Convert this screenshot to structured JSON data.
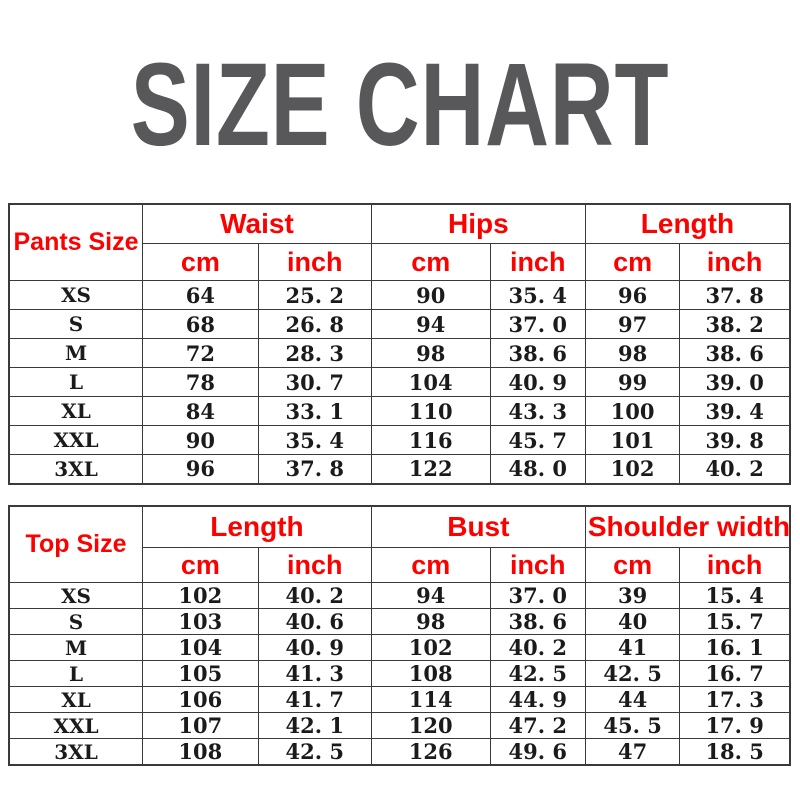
{
  "title": "SIZE CHART",
  "colors": {
    "title_text": "#58585a",
    "header_text": "#fb0100",
    "cell_text": "#1b1b1d",
    "table_border": "#3a3a3c",
    "background": "#ffffff"
  },
  "tables": [
    {
      "row_header_label": "Pants Size",
      "groups": [
        {
          "label": "Waist",
          "units": [
            "cm",
            "inch"
          ]
        },
        {
          "label": "Hips",
          "units": [
            "cm",
            "inch"
          ]
        },
        {
          "label": "Length",
          "units": [
            "cm",
            "inch"
          ]
        }
      ],
      "rows": [
        {
          "size": "XS",
          "values": [
            "64",
            "25. 2",
            "90",
            "35. 4",
            "96",
            "37. 8"
          ]
        },
        {
          "size": "S",
          "values": [
            "68",
            "26. 8",
            "94",
            "37. 0",
            "97",
            "38. 2"
          ]
        },
        {
          "size": "M",
          "values": [
            "72",
            "28. 3",
            "98",
            "38. 6",
            "98",
            "38. 6"
          ]
        },
        {
          "size": "L",
          "values": [
            "78",
            "30. 7",
            "104",
            "40. 9",
            "99",
            "39. 0"
          ]
        },
        {
          "size": "XL",
          "values": [
            "84",
            "33. 1",
            "110",
            "43. 3",
            "100",
            "39. 4"
          ]
        },
        {
          "size": "XXL",
          "values": [
            "90",
            "35. 4",
            "116",
            "45. 7",
            "101",
            "39. 8"
          ]
        },
        {
          "size": "3XL",
          "values": [
            "96",
            "37. 8",
            "122",
            "48. 0",
            "102",
            "40. 2"
          ]
        }
      ]
    },
    {
      "row_header_label": "Top Size",
      "groups": [
        {
          "label": "Length",
          "units": [
            "cm",
            "inch"
          ]
        },
        {
          "label": "Bust",
          "units": [
            "cm",
            "inch"
          ]
        },
        {
          "label": "Shoulder width",
          "units": [
            "cm",
            "inch"
          ]
        }
      ],
      "rows": [
        {
          "size": "XS",
          "values": [
            "102",
            "40. 2",
            "94",
            "37. 0",
            "39",
            "15. 4"
          ]
        },
        {
          "size": "S",
          "values": [
            "103",
            "40. 6",
            "98",
            "38. 6",
            "40",
            "15. 7"
          ]
        },
        {
          "size": "M",
          "values": [
            "104",
            "40. 9",
            "102",
            "40. 2",
            "41",
            "16. 1"
          ]
        },
        {
          "size": "L",
          "values": [
            "105",
            "41. 3",
            "108",
            "42. 5",
            "42. 5",
            "16. 7"
          ]
        },
        {
          "size": "XL",
          "values": [
            "106",
            "41. 7",
            "114",
            "44. 9",
            "44",
            "17. 3"
          ]
        },
        {
          "size": "XXL",
          "values": [
            "107",
            "42. 1",
            "120",
            "47. 2",
            "45. 5",
            "17. 9"
          ]
        },
        {
          "size": "3XL",
          "values": [
            "108",
            "42. 5",
            "126",
            "49. 6",
            "47",
            "18. 5"
          ]
        }
      ]
    }
  ]
}
